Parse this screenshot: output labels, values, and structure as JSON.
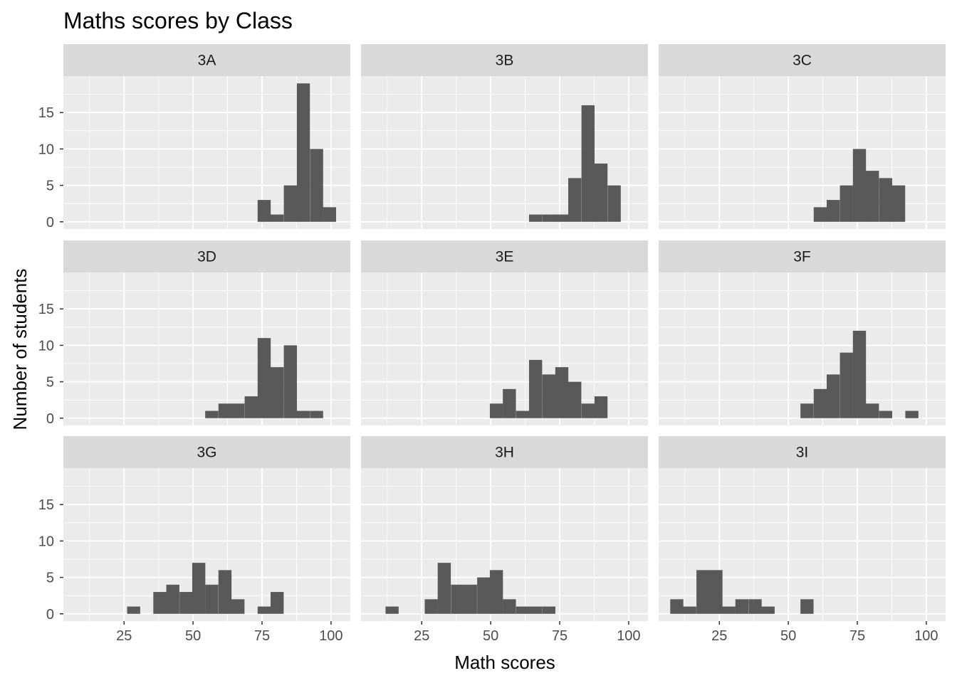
{
  "chart_data": {
    "type": "bar",
    "title": "Maths scores by Class",
    "xlabel": "Math scores",
    "ylabel": "Number of students",
    "xlim": [
      3,
      107
    ],
    "ylim": [
      -1,
      20
    ],
    "x_ticks": [
      25,
      50,
      75,
      100
    ],
    "y_ticks": [
      0,
      5,
      10,
      15
    ],
    "grid": true,
    "bin_width": 4.74,
    "bar_color": "#595959",
    "panel_background": "#ebebeb",
    "strip_background": "#d9d9d9",
    "facets": [
      {
        "label": "3A",
        "bins": [
          [
            73.4,
            3
          ],
          [
            78.1,
            1
          ],
          [
            82.9,
            5
          ],
          [
            87.6,
            19
          ],
          [
            92.4,
            10
          ],
          [
            97.1,
            2
          ]
        ]
      },
      {
        "label": "3B",
        "bins": [
          [
            63.9,
            1
          ],
          [
            68.7,
            1
          ],
          [
            73.4,
            1
          ],
          [
            78.1,
            6
          ],
          [
            82.9,
            16
          ],
          [
            87.6,
            8
          ],
          [
            92.4,
            5
          ]
        ]
      },
      {
        "label": "3C",
        "bins": [
          [
            59.2,
            2
          ],
          [
            63.9,
            3
          ],
          [
            68.7,
            5
          ],
          [
            73.4,
            10
          ],
          [
            78.1,
            7
          ],
          [
            82.9,
            6
          ],
          [
            87.6,
            5
          ]
        ]
      },
      {
        "label": "3D",
        "bins": [
          [
            54.4,
            1
          ],
          [
            59.2,
            2
          ],
          [
            63.9,
            2
          ],
          [
            68.7,
            3
          ],
          [
            73.4,
            11
          ],
          [
            78.1,
            7
          ],
          [
            82.9,
            10
          ],
          [
            87.6,
            1
          ],
          [
            92.4,
            1
          ]
        ]
      },
      {
        "label": "3E",
        "bins": [
          [
            49.7,
            2
          ],
          [
            54.4,
            4
          ],
          [
            59.2,
            1
          ],
          [
            63.9,
            8
          ],
          [
            68.7,
            6
          ],
          [
            73.4,
            7
          ],
          [
            78.1,
            5
          ],
          [
            82.9,
            2
          ],
          [
            87.6,
            3
          ]
        ]
      },
      {
        "label": "3F",
        "bins": [
          [
            54.4,
            2
          ],
          [
            59.2,
            4
          ],
          [
            63.9,
            6
          ],
          [
            68.7,
            9
          ],
          [
            73.4,
            12
          ],
          [
            78.1,
            2
          ],
          [
            82.9,
            1
          ],
          [
            92.4,
            1
          ]
        ]
      },
      {
        "label": "3G",
        "bins": [
          [
            26.1,
            1
          ],
          [
            35.6,
            3
          ],
          [
            40.3,
            4
          ],
          [
            45.1,
            3
          ],
          [
            49.7,
            7
          ],
          [
            54.4,
            4
          ],
          [
            59.2,
            6
          ],
          [
            63.9,
            2
          ],
          [
            73.4,
            1
          ],
          [
            78.1,
            3
          ]
        ]
      },
      {
        "label": "3H",
        "bins": [
          [
            11.9,
            1
          ],
          [
            26.1,
            2
          ],
          [
            30.8,
            7
          ],
          [
            35.6,
            4
          ],
          [
            40.3,
            4
          ],
          [
            45.1,
            5
          ],
          [
            49.7,
            6
          ],
          [
            54.4,
            2
          ],
          [
            59.2,
            1
          ],
          [
            63.9,
            1
          ],
          [
            68.7,
            1
          ]
        ]
      },
      {
        "label": "3I",
        "bins": [
          [
            7.2,
            2
          ],
          [
            11.9,
            1
          ],
          [
            16.7,
            6
          ],
          [
            21.4,
            6
          ],
          [
            26.1,
            1
          ],
          [
            30.8,
            2
          ],
          [
            35.6,
            2
          ],
          [
            40.3,
            1
          ],
          [
            54.4,
            2
          ]
        ]
      }
    ]
  }
}
